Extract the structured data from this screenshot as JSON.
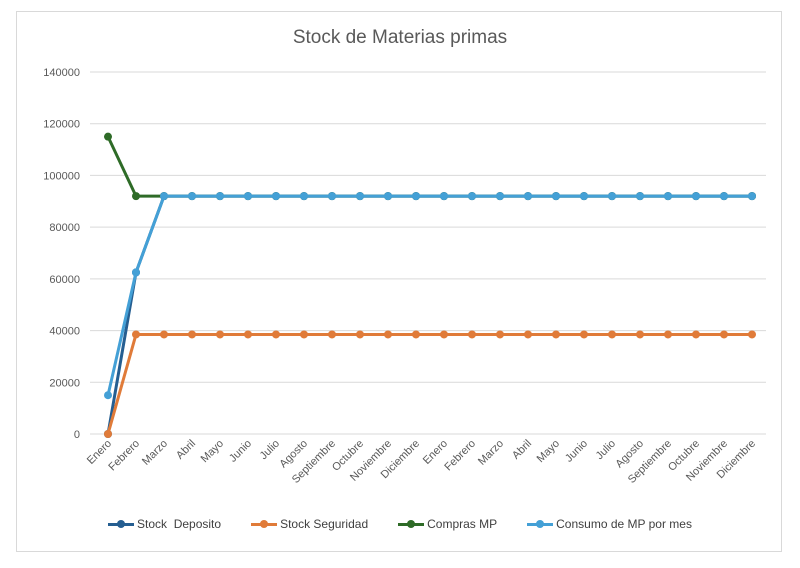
{
  "chart_data": {
    "type": "line",
    "title": "Stock de Materias primas",
    "xlabel": "",
    "ylabel": "",
    "ylim": [
      0,
      140000
    ],
    "yticks": [
      0,
      20000,
      40000,
      60000,
      80000,
      100000,
      120000,
      140000
    ],
    "grid": true,
    "legend_position": "bottom",
    "categories": [
      "Enero",
      "Febrero",
      "Marzo",
      "Abril",
      "Mayo",
      "Junio",
      "Julio",
      "Agosto",
      "Septiembre",
      "Octubre",
      "Noviembre",
      "Diciembre",
      "Enero",
      "Febrero",
      "Marzo",
      "Abril",
      "Mayo",
      "Junio",
      "Julio",
      "Agosto",
      "Septiembre",
      "Octubre",
      "Noviembre",
      "Diciembre"
    ],
    "series": [
      {
        "name": "Stock  Deposito",
        "color": "#255e91",
        "values": [
          0,
          62500,
          92000,
          92000,
          92000,
          92000,
          92000,
          92000,
          92000,
          92000,
          92000,
          92000,
          92000,
          92000,
          92000,
          92000,
          92000,
          92000,
          92000,
          92000,
          92000,
          92000,
          92000,
          92000
        ]
      },
      {
        "name": "Stock Seguridad",
        "color": "#e07b39",
        "values": [
          0,
          38500,
          38500,
          38500,
          38500,
          38500,
          38500,
          38500,
          38500,
          38500,
          38500,
          38500,
          38500,
          38500,
          38500,
          38500,
          38500,
          38500,
          38500,
          38500,
          38500,
          38500,
          38500,
          38500
        ]
      },
      {
        "name": "Compras MP",
        "color": "#2e6b27",
        "values": [
          115000,
          92000,
          92000,
          92000,
          92000,
          92000,
          92000,
          92000,
          92000,
          92000,
          92000,
          92000,
          92000,
          92000,
          92000,
          92000,
          92000,
          92000,
          92000,
          92000,
          92000,
          92000,
          92000,
          92000
        ]
      },
      {
        "name": "Consumo de MP por mes",
        "color": "#44a0d6",
        "values": [
          15000,
          62500,
          92000,
          92000,
          92000,
          92000,
          92000,
          92000,
          92000,
          92000,
          92000,
          92000,
          92000,
          92000,
          92000,
          92000,
          92000,
          92000,
          92000,
          92000,
          92000,
          92000,
          92000,
          92000
        ]
      }
    ]
  }
}
